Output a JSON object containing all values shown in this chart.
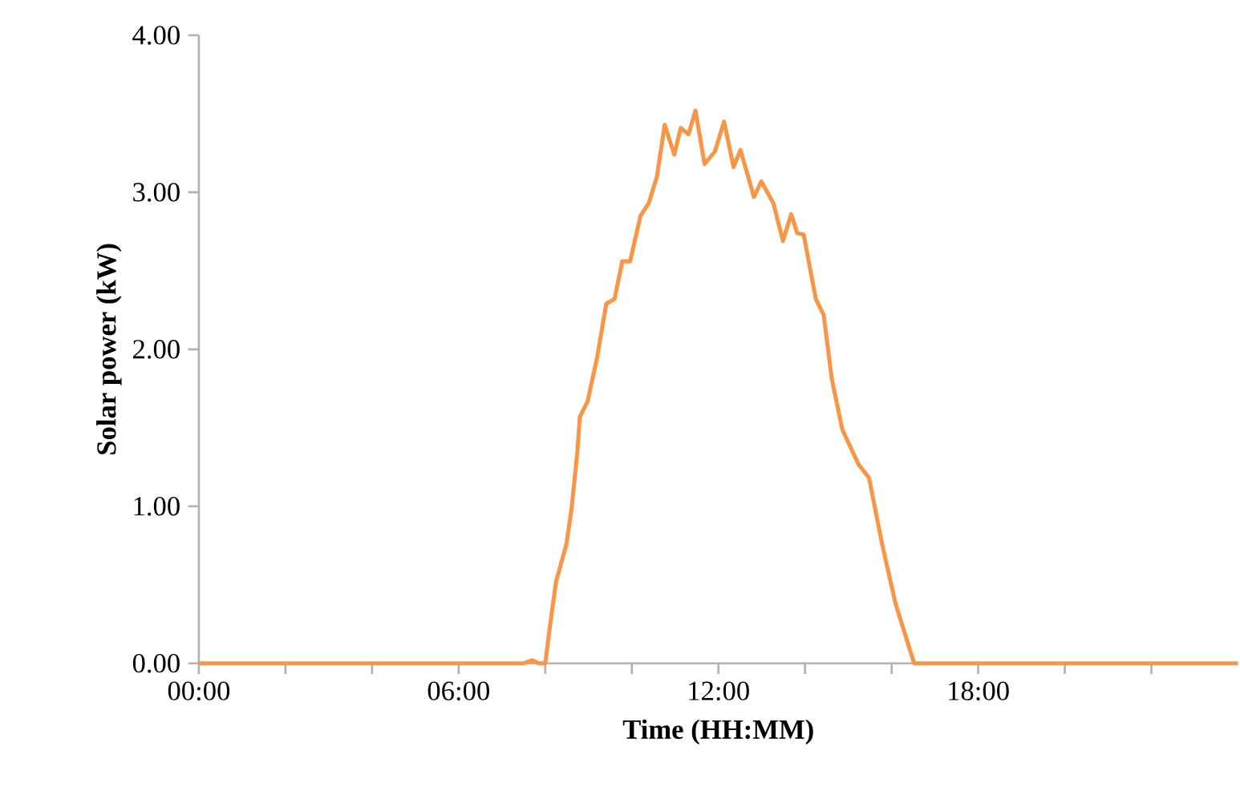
{
  "chart_data": {
    "type": "line",
    "xlabel": "Time (HH:MM)",
    "ylabel": "Solar power (kW)",
    "x": [
      0,
      2,
      4,
      6,
      7.5,
      7.7,
      7.85,
      8.0,
      8.13,
      8.25,
      8.49,
      8.61,
      8.74,
      8.8,
      8.98,
      9.2,
      9.41,
      9.6,
      9.78,
      9.96,
      10.2,
      10.39,
      10.58,
      10.76,
      10.98,
      11.13,
      11.31,
      11.47,
      11.68,
      11.92,
      12.13,
      12.35,
      12.51,
      12.82,
      12.99,
      13.27,
      13.49,
      13.68,
      13.82,
      13.97,
      14.25,
      14.43,
      14.62,
      14.86,
      15.23,
      15.48,
      15.78,
      16.09,
      16.34,
      16.52,
      18,
      20,
      22,
      24
    ],
    "series": [
      {
        "color": "#f79646",
        "values": [
          0,
          0,
          0,
          0,
          0,
          0.02,
          0,
          0,
          0.28,
          0.52,
          0.76,
          0.99,
          1.34,
          1.57,
          1.67,
          1.95,
          2.29,
          2.32,
          2.56,
          2.56,
          2.85,
          2.93,
          3.1,
          3.43,
          3.24,
          3.41,
          3.37,
          3.52,
          3.18,
          3.26,
          3.45,
          3.16,
          3.27,
          2.97,
          3.07,
          2.93,
          2.69,
          2.86,
          2.74,
          2.73,
          2.32,
          2.22,
          1.81,
          1.49,
          1.27,
          1.18,
          0.76,
          0.38,
          0.16,
          0,
          0,
          0,
          0,
          0
        ]
      }
    ],
    "xlim": [
      0,
      24
    ],
    "xticks": [
      {
        "value": 0,
        "label": "00:00"
      },
      {
        "value": 2,
        "label": null
      },
      {
        "value": 4,
        "label": null
      },
      {
        "value": 6,
        "label": "06:00"
      },
      {
        "value": 8,
        "label": null
      },
      {
        "value": 10,
        "label": null
      },
      {
        "value": 12,
        "label": "12:00"
      },
      {
        "value": 14,
        "label": null
      },
      {
        "value": 16,
        "label": null
      },
      {
        "value": 18,
        "label": "18:00"
      },
      {
        "value": 20,
        "label": null
      },
      {
        "value": 22,
        "label": null
      }
    ],
    "ylim": [
      0,
      4
    ],
    "yticks": [
      {
        "value": 0,
        "label": "0.00"
      },
      {
        "value": 1,
        "label": "1.00"
      },
      {
        "value": 2,
        "label": "2.00"
      },
      {
        "value": 3,
        "label": "3.00"
      },
      {
        "value": 4,
        "label": "4.00"
      }
    ],
    "grid": false,
    "marker": "none",
    "line_style": "solid"
  }
}
